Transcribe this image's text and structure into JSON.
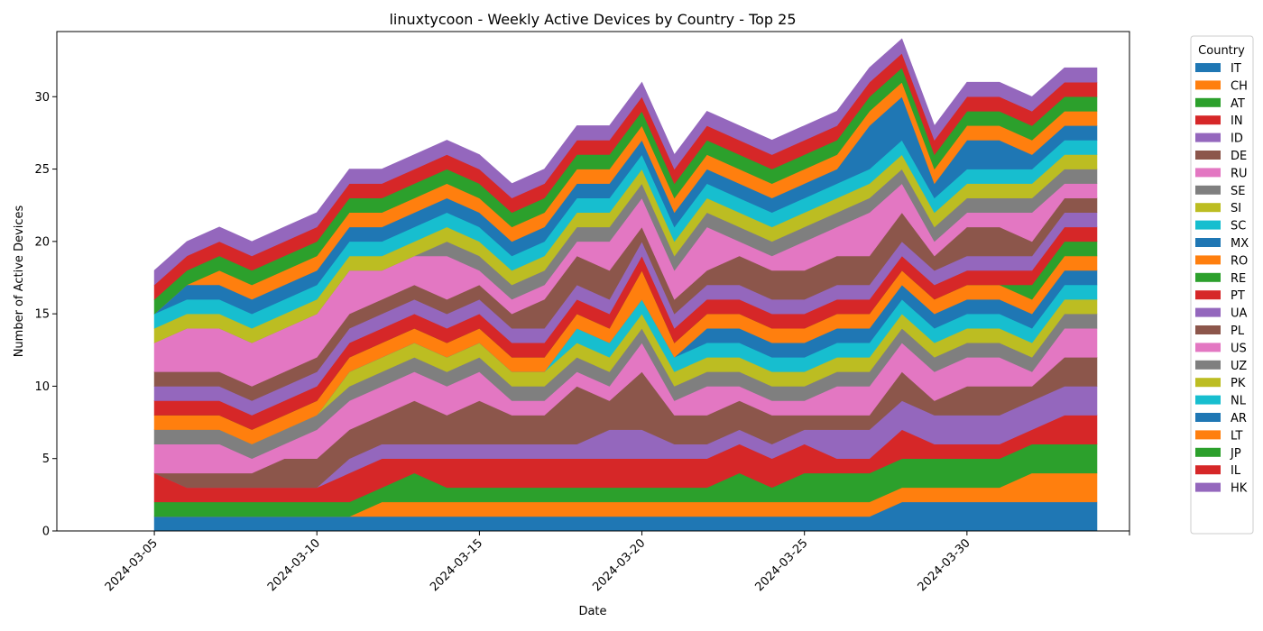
{
  "chart_data": {
    "type": "area",
    "stacked": true,
    "title": "linuxtycoon - Weekly Active Devices by Country - Top 25",
    "xlabel": "Date",
    "ylabel": "Number of Active Devices",
    "x": [
      "2024-03-05",
      "2024-03-06",
      "2024-03-07",
      "2024-03-08",
      "2024-03-09",
      "2024-03-10",
      "2024-03-11",
      "2024-03-12",
      "2024-03-13",
      "2024-03-14",
      "2024-03-15",
      "2024-03-16",
      "2024-03-17",
      "2024-03-18",
      "2024-03-19",
      "2024-03-20",
      "2024-03-21",
      "2024-03-22",
      "2024-03-23",
      "2024-03-24",
      "2024-03-25",
      "2024-03-26",
      "2024-03-27",
      "2024-03-28",
      "2024-03-29",
      "2024-03-30",
      "2024-03-31",
      "2024-04-01",
      "2024-04-02",
      "2024-04-03"
    ],
    "xticks": [
      "2024-03-05",
      "2024-03-10",
      "2024-03-15",
      "2024-03-20",
      "2024-03-25",
      "2024-03-30",
      ""
    ],
    "xlim": [
      "2024-03-02",
      "2024-04-04"
    ],
    "ylim": [
      0,
      34.5
    ],
    "yticks": [
      0,
      5,
      10,
      15,
      20,
      25,
      30
    ],
    "legend_title": "Country",
    "legend_position": "outside-right",
    "grid": false,
    "series": [
      {
        "name": "IT",
        "color": "#1f77b4",
        "values": [
          1,
          1,
          1,
          1,
          1,
          1,
          1,
          1,
          1,
          1,
          1,
          1,
          1,
          1,
          1,
          1,
          1,
          1,
          1,
          1,
          1,
          1,
          1,
          2,
          2,
          2,
          2,
          2,
          2,
          2
        ]
      },
      {
        "name": "CH",
        "color": "#ff7f0e",
        "values": [
          0,
          0,
          0,
          0,
          0,
          0,
          0,
          1,
          1,
          1,
          1,
          1,
          1,
          1,
          1,
          1,
          1,
          1,
          1,
          1,
          1,
          1,
          1,
          1,
          1,
          1,
          1,
          2,
          2,
          2
        ]
      },
      {
        "name": "AT",
        "color": "#2ca02c",
        "values": [
          1,
          1,
          1,
          1,
          1,
          1,
          1,
          1,
          2,
          1,
          1,
          1,
          1,
          1,
          1,
          1,
          1,
          1,
          2,
          1,
          2,
          2,
          2,
          2,
          2,
          2,
          2,
          2,
          2,
          2
        ]
      },
      {
        "name": "IN",
        "color": "#d62728",
        "values": [
          2,
          1,
          1,
          1,
          1,
          1,
          2,
          2,
          1,
          2,
          2,
          2,
          2,
          2,
          2,
          2,
          2,
          2,
          2,
          2,
          2,
          1,
          1,
          2,
          1,
          1,
          1,
          1,
          2,
          2
        ]
      },
      {
        "name": "ID",
        "color": "#9467bd",
        "values": [
          0,
          0,
          0,
          0,
          0,
          0,
          1,
          1,
          1,
          1,
          1,
          1,
          1,
          1,
          2,
          2,
          1,
          1,
          1,
          1,
          1,
          2,
          2,
          2,
          2,
          2,
          2,
          2,
          2,
          2
        ]
      },
      {
        "name": "DE",
        "color": "#8c564b",
        "values": [
          0,
          1,
          1,
          1,
          2,
          2,
          2,
          2,
          3,
          2,
          3,
          2,
          2,
          4,
          2,
          4,
          2,
          2,
          2,
          2,
          1,
          1,
          1,
          2,
          1,
          2,
          2,
          1,
          2,
          2
        ]
      },
      {
        "name": "RU",
        "color": "#e377c2",
        "values": [
          2,
          2,
          2,
          1,
          1,
          2,
          2,
          2,
          2,
          2,
          2,
          1,
          1,
          1,
          1,
          2,
          1,
          2,
          1,
          1,
          1,
          2,
          2,
          2,
          2,
          2,
          2,
          1,
          2,
          2
        ]
      },
      {
        "name": "SE",
        "color": "#7f7f7f",
        "values": [
          1,
          1,
          1,
          1,
          1,
          1,
          1,
          1,
          1,
          1,
          1,
          1,
          1,
          1,
          1,
          1,
          1,
          1,
          1,
          1,
          1,
          1,
          1,
          1,
          1,
          1,
          1,
          1,
          1,
          1
        ]
      },
      {
        "name": "SI",
        "color": "#bcbd22",
        "values": [
          0,
          0,
          0,
          0,
          0,
          0,
          1,
          1,
          1,
          1,
          1,
          1,
          1,
          1,
          1,
          1,
          1,
          1,
          1,
          1,
          1,
          1,
          1,
          1,
          1,
          1,
          1,
          1,
          1,
          1
        ]
      },
      {
        "name": "SC",
        "color": "#17becf",
        "values": [
          0,
          0,
          0,
          0,
          0,
          0,
          0,
          0,
          0,
          0,
          0,
          0,
          0,
          1,
          1,
          1,
          1,
          1,
          1,
          1,
          1,
          1,
          1,
          1,
          1,
          1,
          1,
          1,
          1,
          1
        ]
      },
      {
        "name": "MX",
        "color": "#1f77b4",
        "values": [
          0,
          0,
          0,
          0,
          0,
          0,
          0,
          0,
          0,
          0,
          0,
          0,
          0,
          0,
          0,
          0,
          0,
          1,
          1,
          1,
          1,
          1,
          1,
          1,
          1,
          1,
          1,
          1,
          1,
          1
        ]
      },
      {
        "name": "RO",
        "color": "#ff7f0e",
        "values": [
          1,
          1,
          1,
          1,
          1,
          1,
          1,
          1,
          1,
          1,
          1,
          1,
          1,
          1,
          1,
          2,
          1,
          1,
          1,
          1,
          1,
          1,
          1,
          1,
          1,
          1,
          1,
          1,
          1,
          1
        ]
      },
      {
        "name": "RE",
        "color": "#2ca02c",
        "values": [
          0,
          0,
          0,
          0,
          0,
          0,
          0,
          0,
          0,
          0,
          0,
          0,
          0,
          0,
          0,
          0,
          0,
          0,
          0,
          0,
          0,
          0,
          0,
          0,
          0,
          0,
          0,
          1,
          1,
          1
        ]
      },
      {
        "name": "PT",
        "color": "#d62728",
        "values": [
          1,
          1,
          1,
          1,
          1,
          1,
          1,
          1,
          1,
          1,
          1,
          1,
          1,
          1,
          1,
          1,
          1,
          1,
          1,
          1,
          1,
          1,
          1,
          1,
          1,
          1,
          1,
          1,
          1,
          1
        ]
      },
      {
        "name": "UA",
        "color": "#9467bd",
        "values": [
          1,
          1,
          1,
          1,
          1,
          1,
          1,
          1,
          1,
          1,
          1,
          1,
          1,
          1,
          1,
          1,
          1,
          1,
          1,
          1,
          1,
          1,
          1,
          1,
          1,
          1,
          1,
          1,
          1,
          1
        ]
      },
      {
        "name": "PL",
        "color": "#8c564b",
        "values": [
          1,
          1,
          1,
          1,
          1,
          1,
          1,
          1,
          1,
          1,
          1,
          1,
          2,
          2,
          2,
          1,
          1,
          1,
          2,
          2,
          2,
          2,
          2,
          2,
          1,
          2,
          2,
          1,
          1,
          1
        ]
      },
      {
        "name": "US",
        "color": "#e377c2",
        "values": [
          2,
          3,
          3,
          3,
          3,
          3,
          3,
          2,
          2,
          3,
          1,
          1,
          1,
          1,
          2,
          2,
          2,
          3,
          1,
          1,
          2,
          2,
          3,
          2,
          1,
          1,
          1,
          2,
          1,
          1
        ]
      },
      {
        "name": "UZ",
        "color": "#7f7f7f",
        "values": [
          0,
          0,
          0,
          0,
          0,
          0,
          0,
          0,
          0,
          1,
          1,
          1,
          1,
          1,
          1,
          1,
          1,
          1,
          1,
          1,
          1,
          1,
          1,
          1,
          1,
          1,
          1,
          1,
          1,
          1
        ]
      },
      {
        "name": "PK",
        "color": "#bcbd22",
        "values": [
          1,
          1,
          1,
          1,
          1,
          1,
          1,
          1,
          1,
          1,
          1,
          1,
          1,
          1,
          1,
          1,
          1,
          1,
          1,
          1,
          1,
          1,
          1,
          1,
          1,
          1,
          1,
          1,
          1,
          1
        ]
      },
      {
        "name": "NL",
        "color": "#17becf",
        "values": [
          1,
          1,
          1,
          1,
          1,
          1,
          1,
          1,
          1,
          1,
          1,
          1,
          1,
          1,
          1,
          1,
          1,
          1,
          1,
          1,
          1,
          1,
          1,
          1,
          1,
          1,
          1,
          1,
          1,
          1
        ]
      },
      {
        "name": "AR",
        "color": "#1f77b4",
        "values": [
          0,
          1,
          1,
          1,
          1,
          1,
          1,
          1,
          1,
          1,
          1,
          1,
          1,
          1,
          1,
          1,
          1,
          1,
          1,
          1,
          1,
          1,
          3,
          3,
          1,
          2,
          2,
          1,
          1,
          1
        ]
      },
      {
        "name": "LT",
        "color": "#ff7f0e",
        "values": [
          0,
          0,
          1,
          1,
          1,
          1,
          1,
          1,
          1,
          1,
          1,
          1,
          1,
          1,
          1,
          1,
          1,
          1,
          1,
          1,
          1,
          1,
          1,
          1,
          1,
          1,
          1,
          1,
          1,
          1
        ]
      },
      {
        "name": "JP",
        "color": "#2ca02c",
        "values": [
          1,
          1,
          1,
          1,
          1,
          1,
          1,
          1,
          1,
          1,
          1,
          1,
          1,
          1,
          1,
          1,
          1,
          1,
          1,
          1,
          1,
          1,
          1,
          1,
          1,
          1,
          1,
          1,
          1,
          1
        ]
      },
      {
        "name": "IL",
        "color": "#d62728",
        "values": [
          1,
          1,
          1,
          1,
          1,
          1,
          1,
          1,
          1,
          1,
          1,
          1,
          1,
          1,
          1,
          1,
          1,
          1,
          1,
          1,
          1,
          1,
          1,
          1,
          1,
          1,
          1,
          1,
          1,
          1
        ]
      },
      {
        "name": "HK",
        "color": "#9467bd",
        "values": [
          1,
          1,
          1,
          1,
          1,
          1,
          1,
          1,
          1,
          1,
          1,
          1,
          1,
          1,
          1,
          1,
          1,
          1,
          1,
          1,
          1,
          1,
          1,
          1,
          1,
          1,
          1,
          1,
          1,
          1
        ]
      }
    ]
  }
}
